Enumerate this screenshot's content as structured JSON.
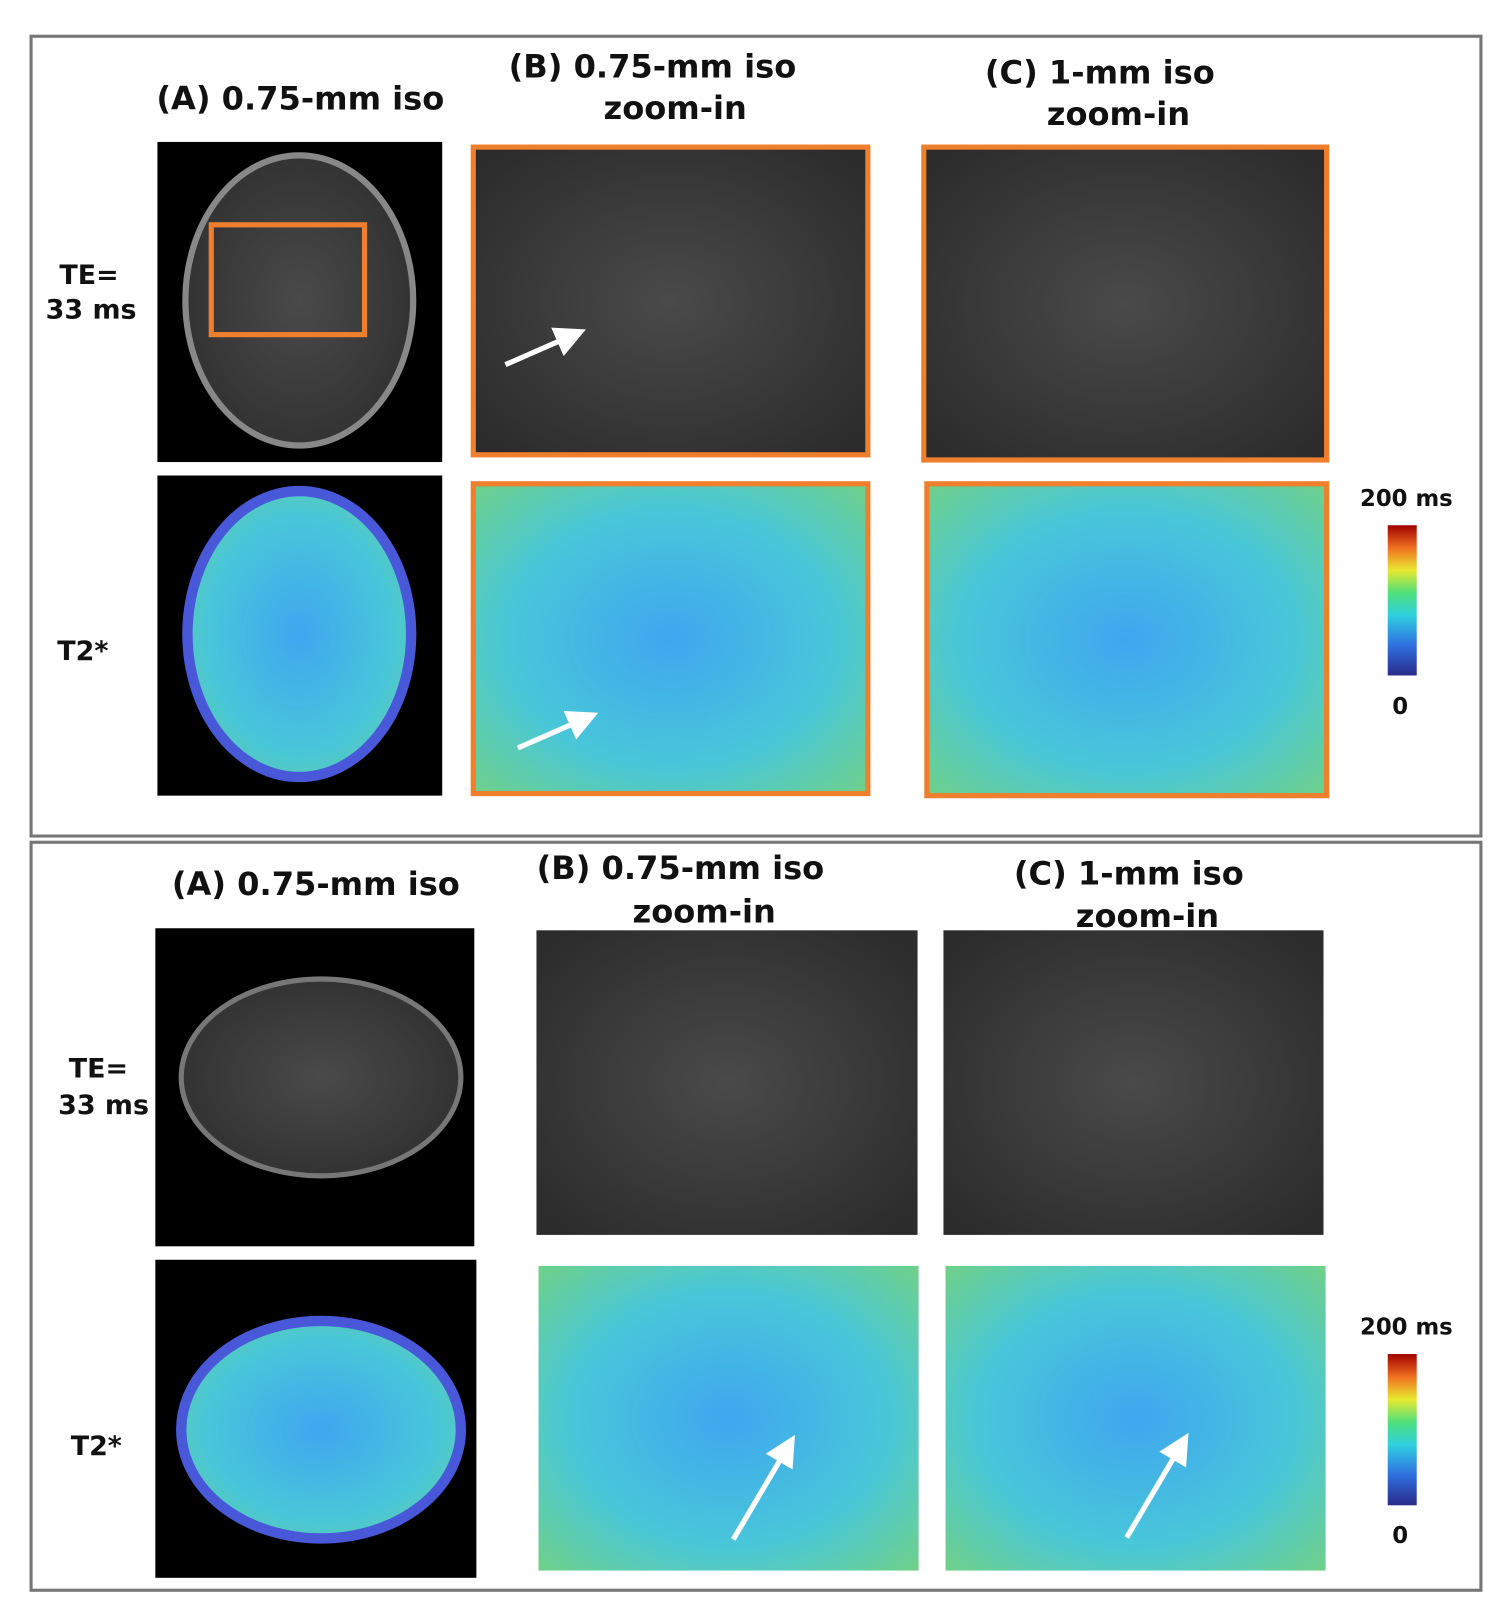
{
  "panels": [
    {
      "columns": [
        [
          "(A) 0.75-mm iso"
        ],
        [
          "(B) 0.75-mm iso",
          "zoom-in"
        ],
        [
          "(C) 1-mm iso",
          "zoom-in"
        ]
      ],
      "rows": [
        [
          "TE=",
          "33 ms"
        ],
        [
          "T2*"
        ]
      ],
      "colorbar": {
        "max": "200 ms",
        "min": "0"
      }
    },
    {
      "columns": [
        [
          "(A) 0.75-mm iso"
        ],
        [
          "(B) 0.75-mm iso",
          "zoom-in"
        ],
        [
          "(C) 1-mm iso",
          "zoom-in"
        ]
      ],
      "rows": [
        [
          "TE=",
          "33 ms"
        ],
        [
          "T2*"
        ]
      ],
      "colorbar": {
        "max": "200 ms",
        "min": "0"
      }
    }
  ]
}
